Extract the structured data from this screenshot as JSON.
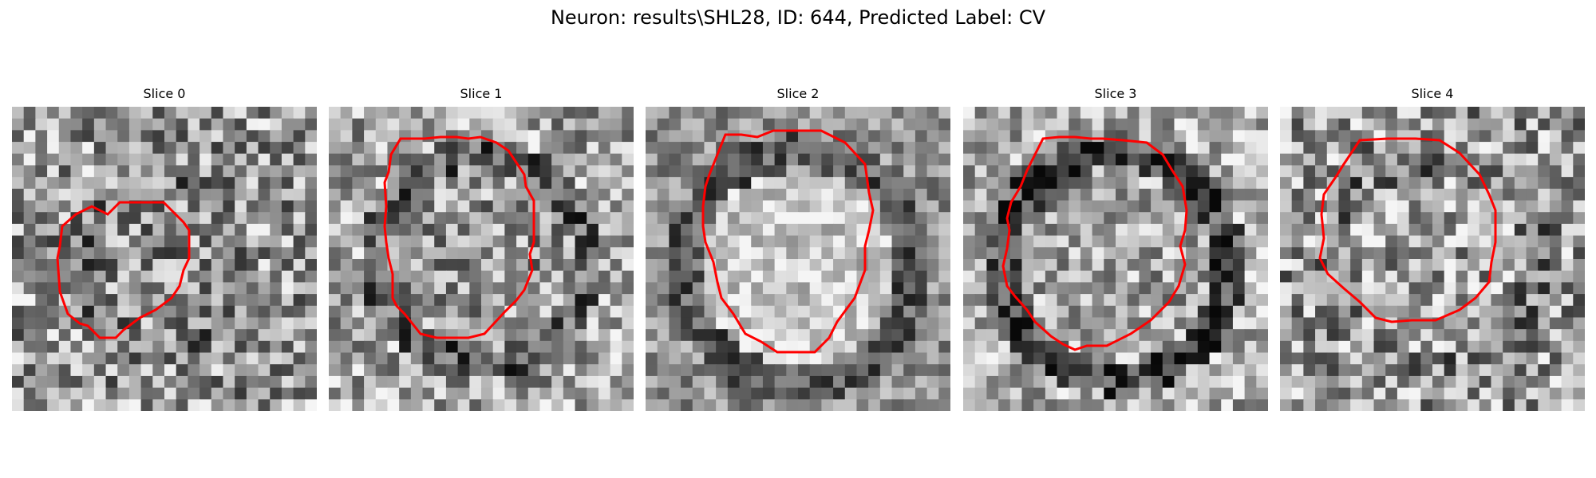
{
  "figure": {
    "title": "Neuron: results\\SHL28, ID: 644, Predicted Label: CV"
  },
  "slices": [
    {
      "label": "Slice 0"
    },
    {
      "label": "Slice 1"
    },
    {
      "label": "Slice 2"
    },
    {
      "label": "Slice 3"
    },
    {
      "label": "Slice 4"
    }
  ],
  "colors": {
    "contour": "#ff0000",
    "background": "#ffffff"
  }
}
